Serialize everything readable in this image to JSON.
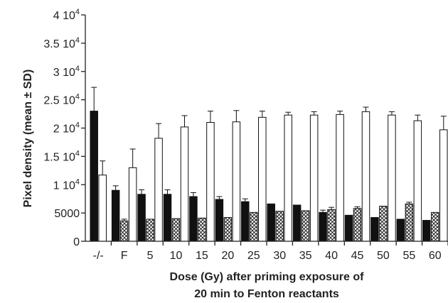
{
  "chart_data": {
    "type": "bar",
    "title": "",
    "xlabel_line1": "Dose (Gy) after priming exposure of",
    "xlabel_line2": "20 min to Fenton reactants",
    "ylabel": "Pixel density (mean ± SD)",
    "ylim": [
      0,
      40000
    ],
    "yticks": [
      {
        "value": 0,
        "label": "0"
      },
      {
        "value": 5000,
        "label": "5000"
      },
      {
        "value": 10000,
        "label": "1 10",
        "exp": "4"
      },
      {
        "value": 15000,
        "label": "1.5 10",
        "exp": "4"
      },
      {
        "value": 20000,
        "label": "2 10",
        "exp": "4"
      },
      {
        "value": 25000,
        "label": "2.5 10",
        "exp": "4"
      },
      {
        "value": 30000,
        "label": "3 10",
        "exp": "4"
      },
      {
        "value": 35000,
        "label": "3.5 10",
        "exp": "4"
      },
      {
        "value": 40000,
        "label": "4 10",
        "exp": "4"
      }
    ],
    "categories": [
      "-/-",
      "F",
      "5",
      "10",
      "15",
      "20",
      "25",
      "30",
      "35",
      "40",
      "45",
      "50",
      "55",
      "60"
    ],
    "series": [
      {
        "fill": "#111111",
        "pattern": "solid",
        "values": [
          23000,
          9000,
          8300,
          8300,
          7900,
          7400,
          7000,
          6600,
          6400,
          5100,
          4600,
          4200,
          3900,
          3700
        ],
        "errors": [
          4200,
          800,
          800,
          800,
          700,
          500,
          500,
          0,
          0,
          400,
          0,
          0,
          0,
          0
        ]
      },
      {
        "fill": "#ffffff",
        "pattern": "hatched",
        "values": [
          null,
          3600,
          3900,
          4000,
          4100,
          4200,
          5100,
          5300,
          5400,
          5600,
          5800,
          6200,
          6600,
          5100
        ],
        "errors": [
          null,
          300,
          0,
          0,
          0,
          0,
          0,
          0,
          0,
          400,
          300,
          0,
          300,
          0
        ]
      },
      {
        "fill": "#ffffff",
        "pattern": "open",
        "values": [
          11700,
          13000,
          18200,
          20200,
          21000,
          21100,
          21900,
          22300,
          22300,
          22400,
          22900,
          22300,
          21300,
          19700
        ],
        "errors": [
          2500,
          3300,
          2600,
          2000,
          2000,
          2000,
          1100,
          500,
          600,
          600,
          800,
          600,
          1000,
          2400
        ]
      }
    ],
    "colors": {
      "axis": "#222222",
      "bar_stroke": "#111111"
    },
    "grid": false,
    "legend": "none"
  }
}
